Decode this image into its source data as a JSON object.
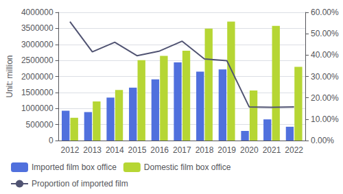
{
  "chart_data": {
    "type": "bar",
    "ylabel": "Unit: million",
    "categories": [
      "2012",
      "2013",
      "2014",
      "2015",
      "2016",
      "2017",
      "2018",
      "2019",
      "2020",
      "2021",
      "2022"
    ],
    "series": [
      {
        "name": "Imported film box office",
        "type": "bar",
        "values": [
          930000,
          890000,
          1340000,
          1650000,
          1910000,
          2440000,
          2150000,
          2220000,
          300000,
          660000,
          430000
        ]
      },
      {
        "name": "Domestic film box office",
        "type": "bar",
        "values": [
          710000,
          1220000,
          1580000,
          2510000,
          2640000,
          2800000,
          3490000,
          3710000,
          1560000,
          3580000,
          2300000
        ]
      },
      {
        "name": "Proportion of imported film",
        "type": "line",
        "axis": "y2",
        "values": [
          0.556,
          0.415,
          0.46,
          0.397,
          0.419,
          0.465,
          0.382,
          0.374,
          0.157,
          0.156,
          0.157
        ]
      }
    ],
    "ylim": [
      0,
      4000000
    ],
    "yticks": [
      0,
      500000,
      1000000,
      1500000,
      2000000,
      2500000,
      3000000,
      3500000,
      4000000
    ],
    "y2lim": [
      0,
      0.6
    ],
    "y2ticks": [
      {
        "value": 0.0,
        "label": "0.00%"
      },
      {
        "value": 0.1,
        "label": "10.00%"
      },
      {
        "value": 0.2,
        "label": "20.00%"
      },
      {
        "value": 0.3,
        "label": "30.00%"
      },
      {
        "value": 0.4,
        "label": "40.00%"
      },
      {
        "value": 0.5,
        "label": "50.00%"
      },
      {
        "value": 0.6,
        "label": "60.00%"
      }
    ],
    "grid": true,
    "legend": "lower left"
  }
}
